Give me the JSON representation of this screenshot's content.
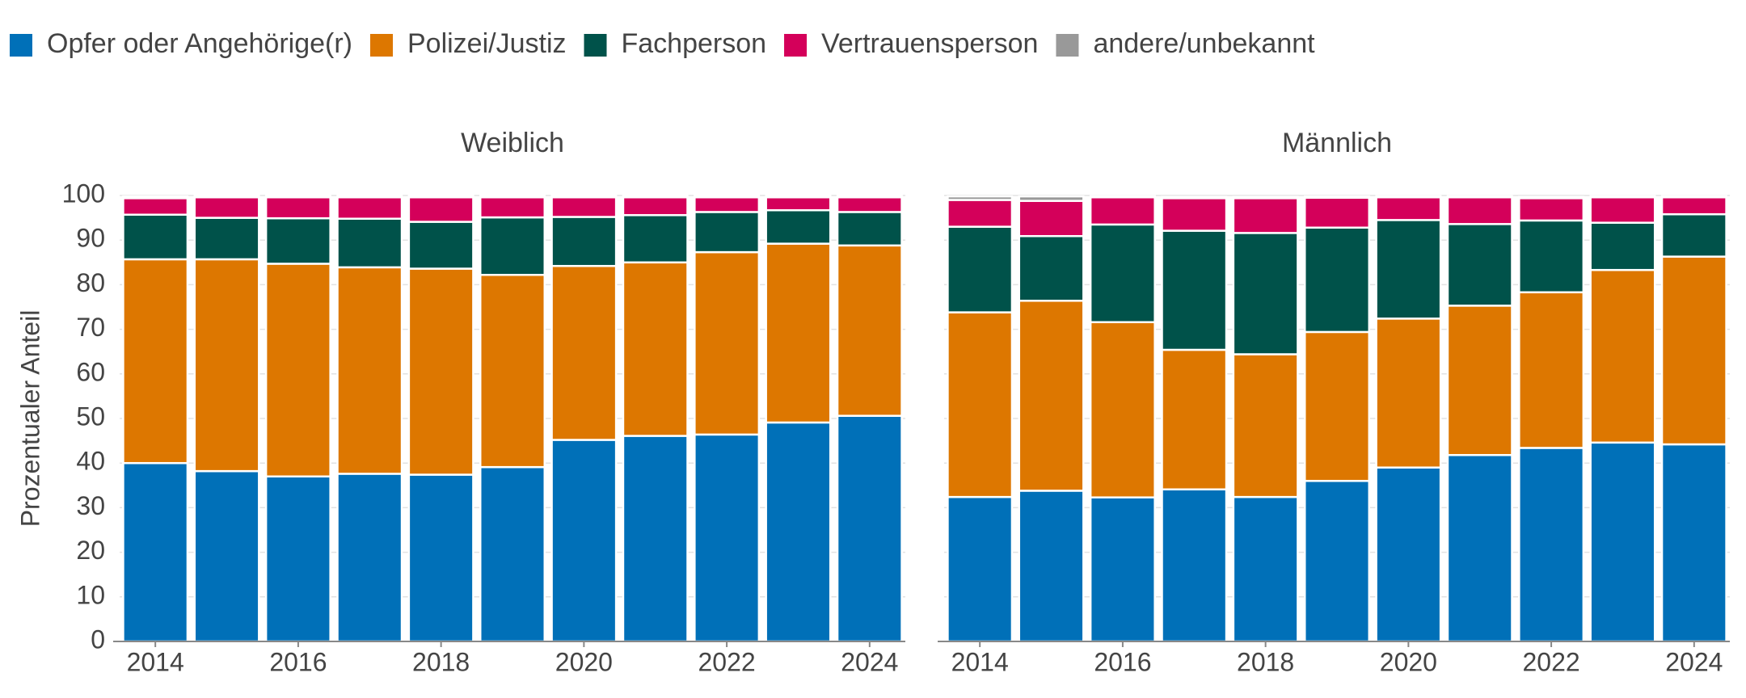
{
  "chart_data": {
    "type": "bar",
    "stacked": true,
    "ylabel": "Prozentualer Anteil",
    "ylim": [
      0,
      100
    ],
    "yticks": [
      0,
      10,
      20,
      30,
      40,
      50,
      60,
      70,
      80,
      90,
      100
    ],
    "xlim": [
      2013.5,
      2024.5
    ],
    "xticks": [
      2014,
      2016,
      2018,
      2020,
      2022,
      2024
    ],
    "x": [
      2014,
      2015,
      2016,
      2017,
      2018,
      2019,
      2020,
      2021,
      2022,
      2023,
      2024
    ],
    "grid": true,
    "legend_position": "top-left",
    "series": [
      {
        "name": "Opfer oder Angehörige(r)",
        "color": "#0070b8"
      },
      {
        "name": "Polizei/Justiz",
        "color": "#dd7700"
      },
      {
        "name": "Fachperson",
        "color": "#00524a"
      },
      {
        "name": "Vertrauensperson",
        "color": "#d4005a"
      },
      {
        "name": "andere/unbekannt",
        "color": "#999999"
      }
    ],
    "panels": [
      {
        "title": "Weiblich",
        "values": [
          [
            40.0,
            38.2,
            37.0,
            37.6,
            37.4,
            39.1,
            45.2,
            46.1,
            46.4,
            49.1,
            50.6
          ],
          [
            45.7,
            47.5,
            47.7,
            46.3,
            46.2,
            43.1,
            39.0,
            38.9,
            40.9,
            40.1,
            38.2
          ],
          [
            10.0,
            9.3,
            10.2,
            10.9,
            10.5,
            12.9,
            11.0,
            10.6,
            9.0,
            7.5,
            7.5
          ],
          [
            3.7,
            4.6,
            4.7,
            4.8,
            5.5,
            4.5,
            4.4,
            4.0,
            3.3,
            2.9,
            3.3
          ],
          [
            0.4,
            0.4,
            0.4,
            0.4,
            0.4,
            0.4,
            0.4,
            0.4,
            0.4,
            0.4,
            0.4
          ]
        ]
      },
      {
        "title": "Männlich",
        "values": [
          [
            32.4,
            33.8,
            32.3,
            34.1,
            32.4,
            36.0,
            39.0,
            41.8,
            43.4,
            44.6,
            44.2
          ],
          [
            41.4,
            42.6,
            39.3,
            31.3,
            32.0,
            33.4,
            33.4,
            33.5,
            34.9,
            38.7,
            42.1
          ],
          [
            19.2,
            14.5,
            21.9,
            26.7,
            27.2,
            23.4,
            22.1,
            18.3,
            16.1,
            10.6,
            9.5
          ],
          [
            6.0,
            7.9,
            6.1,
            7.3,
            7.8,
            6.7,
            5.1,
            6.0,
            5.0,
            5.7,
            3.8
          ],
          [
            0.8,
            1.0,
            0.3,
            0.3,
            0.3,
            0.3,
            0.3,
            0.3,
            0.3,
            0.3,
            0.3
          ]
        ]
      }
    ]
  }
}
